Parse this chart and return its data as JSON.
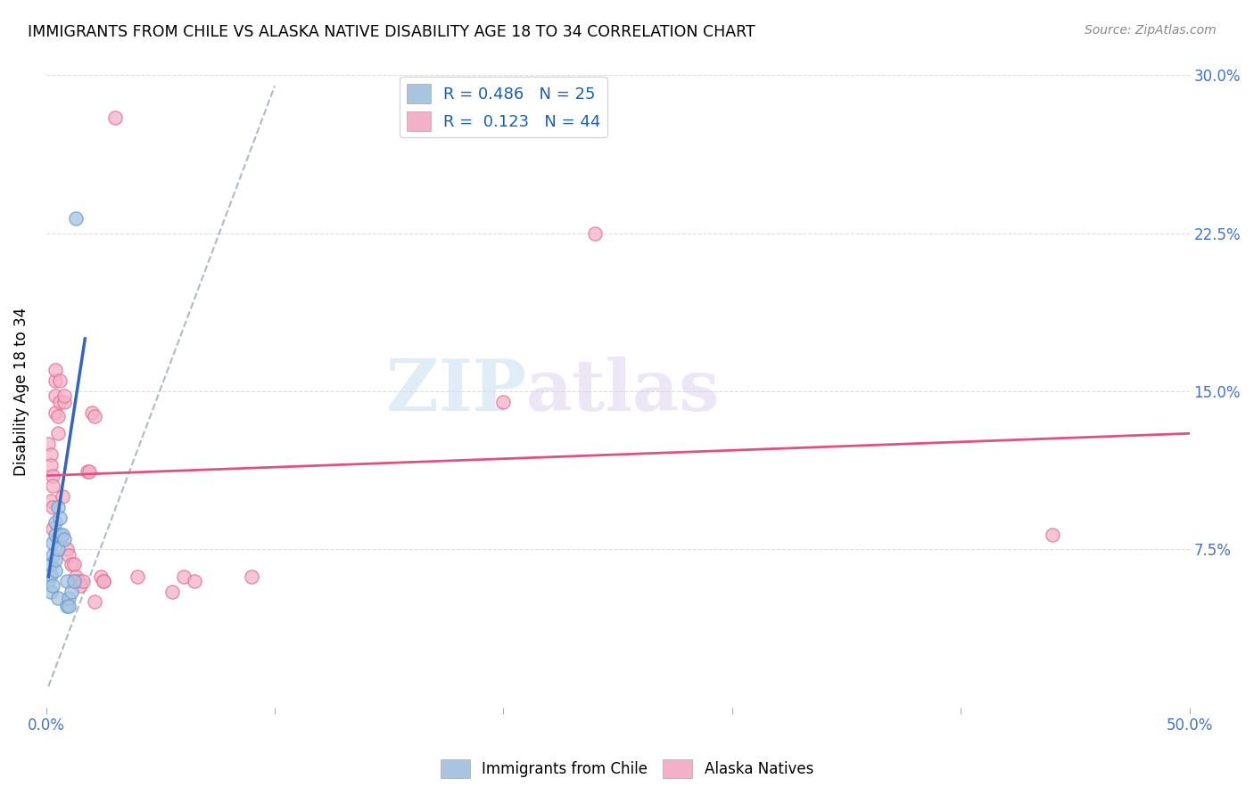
{
  "title": "IMMIGRANTS FROM CHILE VS ALASKA NATIVE DISABILITY AGE 18 TO 34 CORRELATION CHART",
  "source": "Source: ZipAtlas.com",
  "ylabel": "Disability Age 18 to 34",
  "xlim": [
    0.0,
    0.5
  ],
  "ylim": [
    0.0,
    0.3
  ],
  "watermark_zip": "ZIP",
  "watermark_atlas": "atlas",
  "chile_color": "#a8c4e0",
  "chile_edge_color": "#6699cc",
  "alaska_color": "#f4b0c8",
  "alaska_edge_color": "#e07090",
  "chile_scatter": [
    [
      0.001,
      0.06
    ],
    [
      0.002,
      0.063
    ],
    [
      0.002,
      0.055
    ],
    [
      0.002,
      0.068
    ],
    [
      0.003,
      0.058
    ],
    [
      0.003,
      0.072
    ],
    [
      0.003,
      0.078
    ],
    [
      0.004,
      0.065
    ],
    [
      0.004,
      0.07
    ],
    [
      0.004,
      0.082
    ],
    [
      0.004,
      0.088
    ],
    [
      0.005,
      0.075
    ],
    [
      0.005,
      0.052
    ],
    [
      0.005,
      0.095
    ],
    [
      0.006,
      0.082
    ],
    [
      0.006,
      0.09
    ],
    [
      0.007,
      0.082
    ],
    [
      0.008,
      0.08
    ],
    [
      0.009,
      0.06
    ],
    [
      0.009,
      0.048
    ],
    [
      0.01,
      0.052
    ],
    [
      0.01,
      0.048
    ],
    [
      0.011,
      0.055
    ],
    [
      0.012,
      0.06
    ],
    [
      0.013,
      0.232
    ]
  ],
  "alaska_scatter": [
    [
      0.001,
      0.125
    ],
    [
      0.002,
      0.12
    ],
    [
      0.002,
      0.098
    ],
    [
      0.002,
      0.115
    ],
    [
      0.003,
      0.11
    ],
    [
      0.003,
      0.095
    ],
    [
      0.003,
      0.105
    ],
    [
      0.003,
      0.085
    ],
    [
      0.004,
      0.155
    ],
    [
      0.004,
      0.148
    ],
    [
      0.004,
      0.14
    ],
    [
      0.004,
      0.16
    ],
    [
      0.005,
      0.138
    ],
    [
      0.005,
      0.13
    ],
    [
      0.006,
      0.155
    ],
    [
      0.006,
      0.145
    ],
    [
      0.007,
      0.1
    ],
    [
      0.008,
      0.145
    ],
    [
      0.008,
      0.148
    ],
    [
      0.009,
      0.075
    ],
    [
      0.01,
      0.072
    ],
    [
      0.011,
      0.068
    ],
    [
      0.012,
      0.068
    ],
    [
      0.013,
      0.062
    ],
    [
      0.014,
      0.06
    ],
    [
      0.015,
      0.058
    ],
    [
      0.016,
      0.06
    ],
    [
      0.018,
      0.112
    ],
    [
      0.019,
      0.112
    ],
    [
      0.02,
      0.14
    ],
    [
      0.021,
      0.138
    ],
    [
      0.021,
      0.05
    ],
    [
      0.024,
      0.062
    ],
    [
      0.025,
      0.06
    ],
    [
      0.025,
      0.06
    ],
    [
      0.03,
      0.28
    ],
    [
      0.04,
      0.062
    ],
    [
      0.055,
      0.055
    ],
    [
      0.06,
      0.062
    ],
    [
      0.065,
      0.06
    ],
    [
      0.09,
      0.062
    ],
    [
      0.2,
      0.145
    ],
    [
      0.24,
      0.225
    ],
    [
      0.44,
      0.082
    ]
  ],
  "chile_line": [
    [
      0.001,
      0.062
    ],
    [
      0.017,
      0.175
    ]
  ],
  "alaska_line": [
    [
      0.0,
      0.11
    ],
    [
      0.5,
      0.13
    ]
  ],
  "diagonal_line": [
    [
      0.001,
      0.01
    ],
    [
      0.1,
      0.295
    ]
  ],
  "grid_color": "#dddddd",
  "grid_style": "--"
}
